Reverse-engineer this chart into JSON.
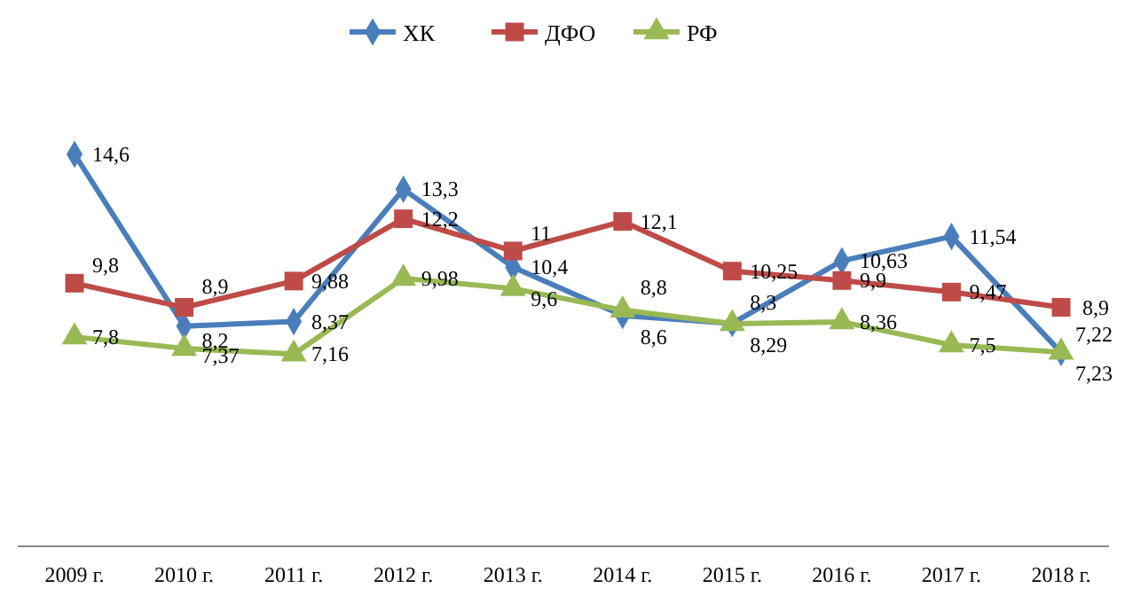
{
  "chart_data": {
    "type": "line",
    "categories": [
      "2009 г.",
      "2010 г.",
      "2011 г.",
      "2012 г.",
      "2013 г.",
      "2014 г.",
      "2015 г.",
      "2016 г.",
      "2017 г.",
      "2018 г."
    ],
    "series": [
      {
        "name": "ХК",
        "color": "#4a7ebb",
        "marker": "diamond",
        "values": [
          14.6,
          8.2,
          8.37,
          13.3,
          10.4,
          8.6,
          8.3,
          10.63,
          11.54,
          7.22
        ],
        "value_labels": [
          "14,6",
          "8,2",
          "8,37",
          "13,3",
          "10,4",
          "8,6",
          "8,3",
          "10,63",
          "11,54",
          "7,22"
        ]
      },
      {
        "name": "ДФО",
        "color": "#be4b48",
        "marker": "square",
        "values": [
          9.8,
          8.9,
          9.88,
          12.2,
          11,
          12.1,
          10.25,
          9.9,
          9.47,
          8.9
        ],
        "value_labels": [
          "9,8",
          "8,9",
          "9,88",
          "12,2",
          "11",
          "12,1",
          "10,25",
          "9,9",
          "9,47",
          "8,9"
        ]
      },
      {
        "name": "РФ",
        "color": "#98b954",
        "marker": "triangle",
        "values": [
          7.8,
          7.37,
          7.16,
          9.98,
          9.6,
          8.8,
          8.29,
          8.36,
          7.5,
          7.23
        ],
        "value_labels": [
          "7,8",
          "7,37",
          "7,16",
          "9,98",
          "9,6",
          "8,8",
          "8,29",
          "8,36",
          "7,5",
          "7,23"
        ]
      }
    ],
    "legend": "top",
    "tick_labels": "x"
  }
}
